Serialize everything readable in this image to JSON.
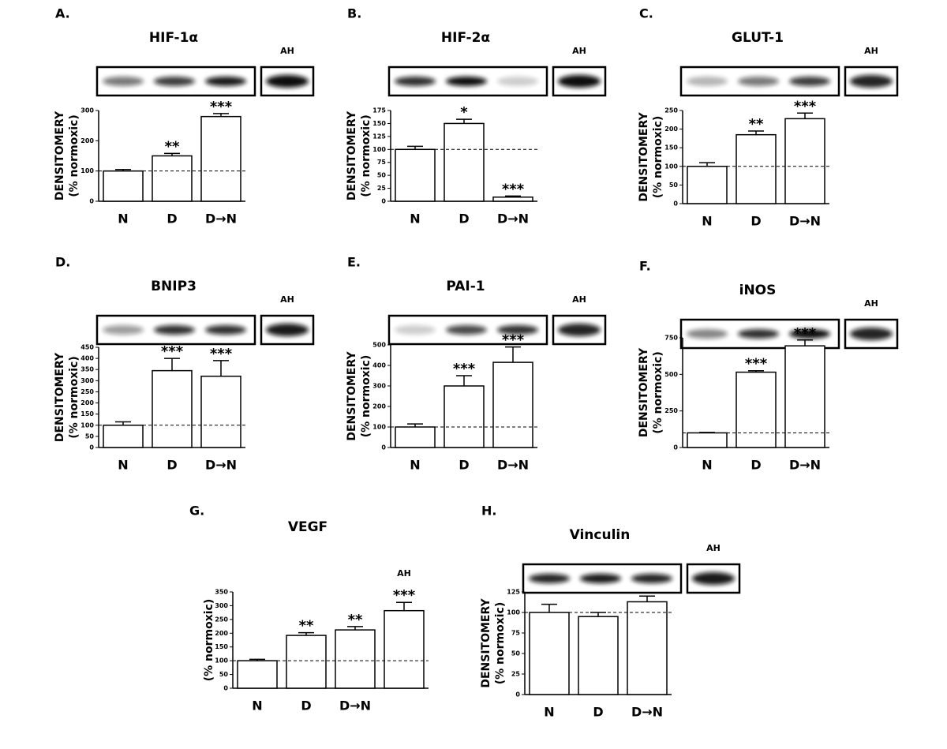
{
  "chart_data": [
    {
      "type": "bar",
      "panel": "A.",
      "title": "HIF-1α",
      "blot_label": "AH",
      "ylabel": [
        "DENSITOMERY",
        "(% normoxic)"
      ],
      "categories": [
        "N",
        "D",
        "D→N"
      ],
      "values": [
        100,
        150,
        280
      ],
      "errors": [
        5,
        8,
        10
      ],
      "significance": [
        null,
        "**",
        "***"
      ],
      "reference_line": 100,
      "ylim": [
        0,
        300
      ],
      "yticks": [
        0,
        100,
        200,
        300
      ],
      "color": "#ffffff"
    },
    {
      "type": "bar",
      "panel": "B.",
      "title": "HIF-2α",
      "blot_label": "AH",
      "ylabel": [
        "DENSITOMERY",
        "(% normoxic)"
      ],
      "categories": [
        "N",
        "D",
        "D→N"
      ],
      "values": [
        100,
        150,
        8
      ],
      "errors": [
        6,
        8,
        2
      ],
      "significance": [
        null,
        "*",
        "***"
      ],
      "reference_line": 100,
      "ylim": [
        0,
        175
      ],
      "yticks": [
        0,
        25,
        50,
        75,
        100,
        125,
        150,
        175
      ],
      "color": "#ffffff"
    },
    {
      "type": "bar",
      "panel": "C.",
      "title": "GLUT-1",
      "blot_label": "AH",
      "ylabel": [
        "DENSITOMERY",
        "(% normoxic)"
      ],
      "categories": [
        "N",
        "D",
        "D→N"
      ],
      "values": [
        100,
        185,
        228
      ],
      "errors": [
        10,
        10,
        15
      ],
      "significance": [
        null,
        "**",
        "***"
      ],
      "reference_line": 100,
      "ylim": [
        0,
        250
      ],
      "yticks": [
        0,
        50,
        100,
        150,
        200,
        250
      ],
      "color": "#ffffff"
    },
    {
      "type": "bar",
      "panel": "D.",
      "title": "BNIP3",
      "blot_label": "AH",
      "ylabel": [
        "DENSITOMERY",
        "(% normoxic)"
      ],
      "categories": [
        "N",
        "D",
        "D→N"
      ],
      "values": [
        100,
        345,
        320
      ],
      "errors": [
        15,
        55,
        70
      ],
      "significance": [
        null,
        "***",
        "***"
      ],
      "reference_line": 100,
      "ylim": [
        0,
        450
      ],
      "yticks": [
        0,
        50,
        100,
        150,
        200,
        250,
        300,
        350,
        400,
        450
      ],
      "color": "#ffffff"
    },
    {
      "type": "bar",
      "panel": "E.",
      "title": "PAI-1",
      "blot_label": "AH",
      "ylabel": [
        "DENSITOMERY",
        "(% normoxic)"
      ],
      "categories": [
        "N",
        "D",
        "D→N"
      ],
      "values": [
        100,
        300,
        415
      ],
      "errors": [
        15,
        50,
        75
      ],
      "significance": [
        null,
        "***",
        "***"
      ],
      "reference_line": 100,
      "ylim": [
        0,
        500
      ],
      "yticks": [
        0,
        100,
        200,
        300,
        400,
        500
      ],
      "color": "#ffffff"
    },
    {
      "type": "bar",
      "panel": "F.",
      "title": "iNOS",
      "blot_label": "AH",
      "ylabel": [
        "DENSITOMERY",
        "(% normoxic)"
      ],
      "categories": [
        "N",
        "D",
        "D→N"
      ],
      "values": [
        100,
        515,
        695
      ],
      "errors": [
        3,
        10,
        40
      ],
      "significance": [
        null,
        "***",
        "***"
      ],
      "reference_line": 100,
      "ylim": [
        0,
        750
      ],
      "yticks": [
        0,
        250,
        500,
        750
      ],
      "color": "#ffffff"
    },
    {
      "type": "bar",
      "panel": "G.",
      "title": "VEGF",
      "blot_label": "AH",
      "ylabel": [
        "(% normoxic)"
      ],
      "categories": [
        "N",
        "D",
        "D→N",
        null
      ],
      "values": [
        100,
        192,
        212,
        282
      ],
      "errors": [
        5,
        10,
        12,
        30
      ],
      "significance": [
        null,
        "**",
        "**",
        "***"
      ],
      "reference_line": 100,
      "ylim": [
        0,
        350
      ],
      "yticks": [
        0,
        50,
        100,
        150,
        200,
        250,
        300,
        350
      ],
      "color": "#ffffff"
    },
    {
      "type": "bar",
      "panel": "H.",
      "title": "Vinculin",
      "blot_label": "AH",
      "ylabel": [
        "DENSITOMERY",
        "(% normoxic)"
      ],
      "categories": [
        "N",
        "D",
        "D→N"
      ],
      "values": [
        100,
        95,
        113
      ],
      "errors": [
        10,
        5,
        7
      ],
      "significance": [
        null,
        null,
        null
      ],
      "reference_line": 100,
      "ylim": [
        0,
        125
      ],
      "yticks": [
        0,
        25,
        50,
        75,
        100,
        125
      ],
      "color": "#ffffff"
    }
  ]
}
